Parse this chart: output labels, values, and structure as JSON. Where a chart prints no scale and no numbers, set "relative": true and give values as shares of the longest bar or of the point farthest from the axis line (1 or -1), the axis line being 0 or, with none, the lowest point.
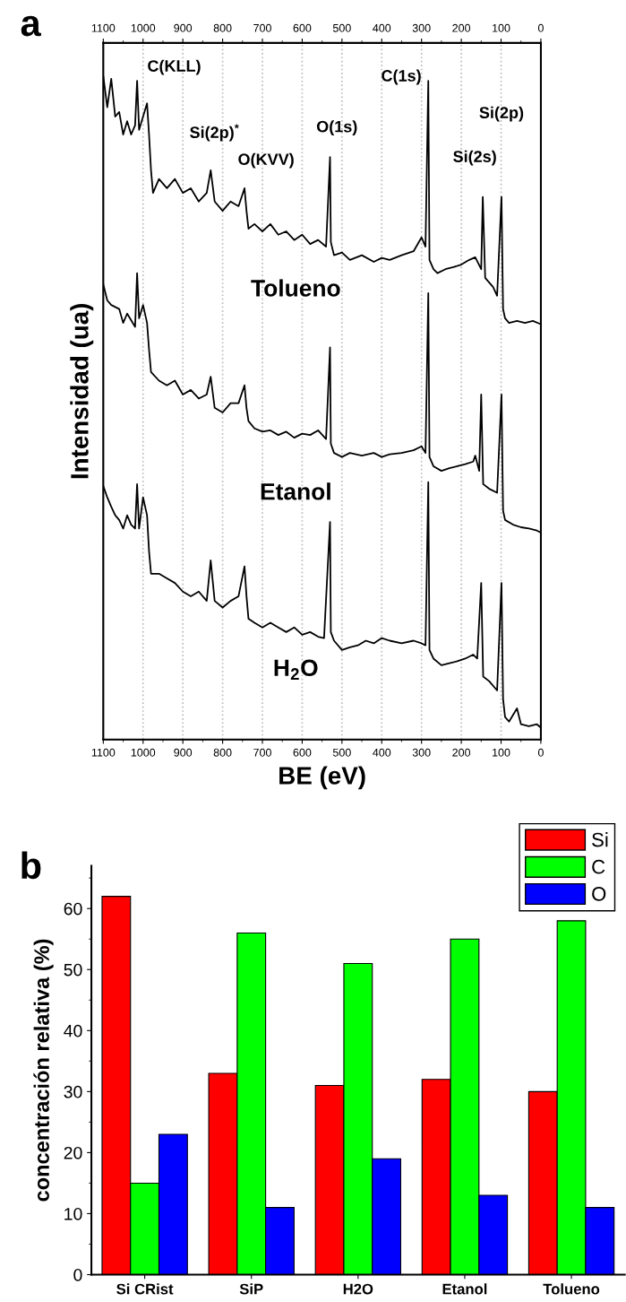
{
  "chart_data": [
    {
      "type": "line",
      "title": "a",
      "xlabel": "BE (eV)",
      "ylabel": "Intensidad (ua)",
      "relative": true,
      "grid": "x",
      "line_style": "solid",
      "xlim": [
        1100,
        0
      ],
      "xticks": [
        1100,
        {
          "value": 1050,
          "label": null
        },
        1000,
        {
          "value": 950,
          "label": null
        },
        900,
        {
          "value": 850,
          "label": null
        },
        800,
        {
          "value": 750,
          "label": null
        },
        700,
        {
          "value": 650,
          "label": null
        },
        600,
        {
          "value": 550,
          "label": null
        },
        500,
        {
          "value": 450,
          "label": null
        },
        400,
        {
          "value": 350,
          "label": null
        },
        300,
        {
          "value": 250,
          "label": null
        },
        200,
        {
          "value": 150,
          "label": null
        },
        100,
        {
          "value": 50,
          "label": null
        },
        0
      ],
      "x2lim": [
        1100,
        0
      ],
      "x2ticks": [
        1100,
        {
          "value": 1050,
          "label": null
        },
        1000,
        {
          "value": 950,
          "label": null
        },
        900,
        {
          "value": 850,
          "label": null
        },
        800,
        {
          "value": 750,
          "label": null
        },
        700,
        {
          "value": 650,
          "label": null
        },
        600,
        {
          "value": 550,
          "label": null
        },
        500,
        {
          "value": 450,
          "label": null
        },
        400,
        {
          "value": 350,
          "label": null
        },
        300,
        {
          "value": 250,
          "label": null
        },
        200,
        {
          "value": 150,
          "label": null
        },
        100,
        {
          "value": 50,
          "label": null
        },
        0
      ],
      "annotations": [
        "C(KLL)",
        "Si(2p)$^{*}$",
        "O(KVV)",
        "O(1s)",
        "C(1s)",
        "Si(2s)",
        "Si(2p)"
      ],
      "series": [
        {
          "name": "Tolueno",
          "color": "#000000",
          "x": [
            1100,
            1090,
            1080,
            1070,
            1060,
            1050,
            1040,
            1030,
            1020,
            1015,
            1010,
            1000,
            990,
            985,
            980,
            975,
            960,
            940,
            920,
            900,
            880,
            860,
            840,
            830,
            820,
            800,
            780,
            760,
            745,
            740,
            735,
            720,
            700,
            680,
            660,
            640,
            620,
            600,
            580,
            560,
            540,
            530,
            528,
            520,
            500,
            480,
            450,
            420,
            400,
            380,
            350,
            320,
            300,
            290,
            283,
            280,
            270,
            260,
            240,
            220,
            200,
            180,
            165,
            150,
            146,
            140,
            120,
            110,
            99,
            95,
            90,
            80,
            60,
            40,
            20,
            0
          ],
          "values": [
            1.0,
            0.953,
            0.996,
            0.939,
            0.946,
            0.912,
            0.932,
            0.912,
            0.926,
            0.993,
            0.919,
            0.939,
            0.959,
            0.912,
            0.858,
            0.824,
            0.845,
            0.831,
            0.845,
            0.824,
            0.831,
            0.811,
            0.824,
            0.858,
            0.811,
            0.797,
            0.811,
            0.804,
            0.831,
            0.797,
            0.77,
            0.777,
            0.766,
            0.777,
            0.761,
            0.766,
            0.753,
            0.761,
            0.747,
            0.753,
            0.743,
            0.878,
            0.75,
            0.73,
            0.734,
            0.723,
            0.73,
            0.72,
            0.726,
            0.723,
            0.73,
            0.736,
            0.757,
            0.743,
            0.993,
            0.723,
            0.709,
            0.703,
            0.709,
            0.712,
            0.716,
            0.723,
            0.727,
            0.709,
            0.818,
            0.696,
            0.682,
            0.669,
            0.818,
            0.649,
            0.635,
            0.628,
            0.631,
            0.628,
            0.631,
            0.626
          ]
        },
        {
          "name": "Etanol",
          "color": "#000000",
          "x": [
            1100,
            1090,
            1080,
            1060,
            1050,
            1040,
            1020,
            1015,
            1010,
            1000,
            990,
            985,
            980,
            960,
            940,
            920,
            900,
            880,
            860,
            840,
            830,
            820,
            800,
            780,
            760,
            745,
            740,
            735,
            720,
            700,
            680,
            660,
            640,
            620,
            600,
            580,
            560,
            540,
            530,
            528,
            520,
            500,
            480,
            450,
            420,
            400,
            380,
            350,
            320,
            300,
            290,
            283,
            280,
            270,
            250,
            230,
            210,
            190,
            170,
            165,
            155,
            150,
            145,
            130,
            110,
            99,
            95,
            90,
            70,
            50,
            30,
            10,
            0
          ],
          "values": [
            0.686,
            0.662,
            0.655,
            0.649,
            0.628,
            0.642,
            0.622,
            0.703,
            0.635,
            0.655,
            0.628,
            0.588,
            0.554,
            0.541,
            0.534,
            0.541,
            0.52,
            0.527,
            0.514,
            0.52,
            0.547,
            0.5,
            0.493,
            0.507,
            0.507,
            0.534,
            0.5,
            0.48,
            0.469,
            0.464,
            0.466,
            0.459,
            0.464,
            0.455,
            0.461,
            0.459,
            0.466,
            0.453,
            0.591,
            0.446,
            0.432,
            0.426,
            0.432,
            0.428,
            0.432,
            0.426,
            0.43,
            0.432,
            0.436,
            0.442,
            0.432,
            0.673,
            0.426,
            0.412,
            0.405,
            0.409,
            0.412,
            0.415,
            0.419,
            0.428,
            0.405,
            0.52,
            0.385,
            0.378,
            0.372,
            0.52,
            0.345,
            0.331,
            0.324,
            0.32,
            0.318,
            0.315,
            0.312
          ]
        },
        {
          "name": "H$_{2}$O",
          "color": "#000000",
          "x": [
            1100,
            1090,
            1080,
            1070,
            1060,
            1050,
            1040,
            1030,
            1020,
            1015,
            1010,
            1000,
            990,
            985,
            980,
            960,
            940,
            920,
            900,
            880,
            860,
            840,
            830,
            820,
            800,
            780,
            760,
            745,
            740,
            735,
            720,
            700,
            680,
            660,
            640,
            620,
            600,
            580,
            560,
            545,
            530,
            528,
            520,
            500,
            480,
            460,
            440,
            420,
            400,
            380,
            350,
            320,
            300,
            290,
            283,
            280,
            270,
            250,
            230,
            210,
            190,
            170,
            160,
            150,
            145,
            130,
            110,
            99,
            95,
            90,
            80,
            60,
            50,
            30,
            10,
            0
          ],
          "values": [
            0.382,
            0.365,
            0.351,
            0.338,
            0.331,
            0.318,
            0.338,
            0.324,
            0.318,
            0.385,
            0.318,
            0.365,
            0.338,
            0.284,
            0.25,
            0.25,
            0.243,
            0.236,
            0.223,
            0.216,
            0.223,
            0.209,
            0.27,
            0.209,
            0.199,
            0.209,
            0.216,
            0.261,
            0.216,
            0.182,
            0.176,
            0.169,
            0.176,
            0.169,
            0.162,
            0.169,
            0.158,
            0.162,
            0.155,
            0.153,
            0.328,
            0.162,
            0.149,
            0.135,
            0.139,
            0.142,
            0.149,
            0.145,
            0.153,
            0.149,
            0.145,
            0.149,
            0.145,
            0.142,
            0.388,
            0.135,
            0.122,
            0.112,
            0.115,
            0.118,
            0.122,
            0.128,
            0.122,
            0.236,
            0.095,
            0.088,
            0.074,
            0.236,
            0.061,
            0.034,
            0.027,
            0.047,
            0.023,
            0.02,
            0.023,
            0.018
          ]
        }
      ]
    },
    {
      "type": "bar",
      "title": "b",
      "ylabel": "concentración relativa (%)",
      "categories": [
        "Si CRist",
        "SiP",
        "H2O",
        "Etanol",
        "Tolueno"
      ],
      "ylim": [
        0,
        67
      ],
      "yticks": [
        0,
        {
          "value": 5,
          "label": null
        },
        10,
        {
          "value": 15,
          "label": null
        },
        20,
        {
          "value": 25,
          "label": null
        },
        30,
        {
          "value": 35,
          "label": null
        },
        40,
        {
          "value": 45,
          "label": null
        },
        50,
        {
          "value": 55,
          "label": null
        },
        60,
        {
          "value": 65,
          "label": null
        }
      ],
      "legend": "top right",
      "series": [
        {
          "name": "Si",
          "color": "#ff0000",
          "values": [
            62,
            33,
            31,
            32,
            30
          ]
        },
        {
          "name": "C",
          "color": "#00ff00",
          "values": [
            15,
            56,
            51,
            55,
            58
          ]
        },
        {
          "name": "O",
          "color": "#0000ff",
          "values": [
            23,
            11,
            19,
            13,
            11
          ]
        }
      ]
    }
  ]
}
